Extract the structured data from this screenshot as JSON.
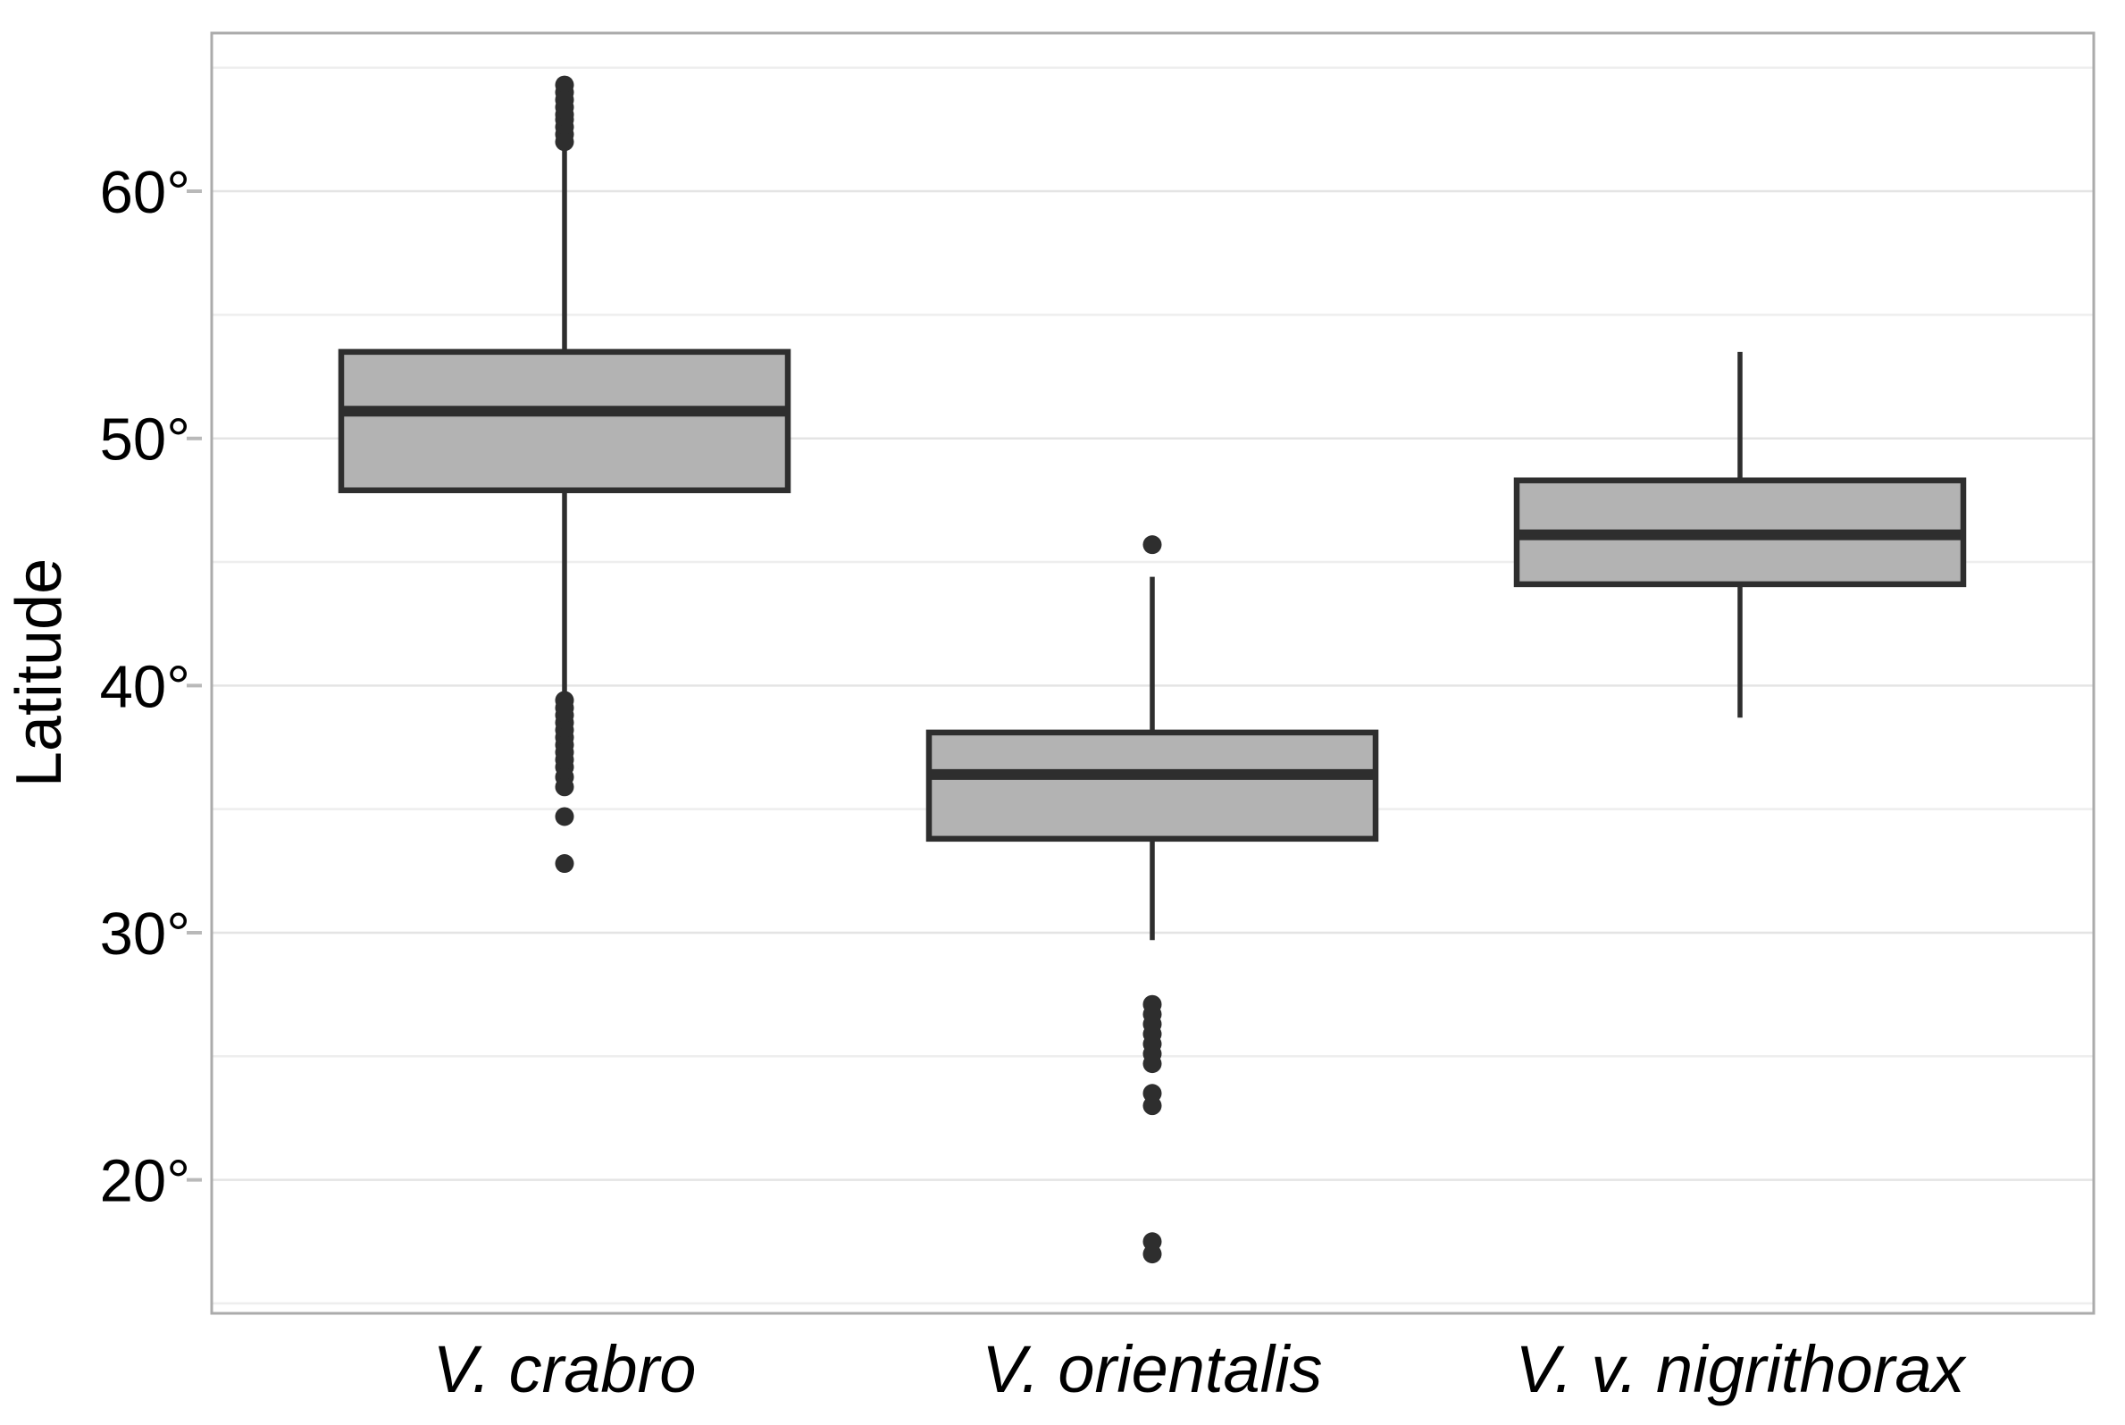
{
  "chart_data": {
    "type": "boxplot",
    "title": "",
    "xlabel": "",
    "ylabel": "Latitude",
    "categories": [
      "V. crabro",
      "V. orientalis",
      "V. v. nigrithorax"
    ],
    "ylim": [
      14.6,
      66.4
    ],
    "y_ticks": [
      {
        "value": 20,
        "label": "20°"
      },
      {
        "value": 30,
        "label": "30°"
      },
      {
        "value": 40,
        "label": "40°"
      },
      {
        "value": 50,
        "label": "50°"
      },
      {
        "value": 60,
        "label": "60°"
      }
    ],
    "y_minor_ticks": [
      15,
      25,
      35,
      45,
      55,
      65
    ],
    "grid": true,
    "legend": "none",
    "series": [
      {
        "name": "V. crabro",
        "q1": 47.9,
        "median": 51.1,
        "q3": 53.5,
        "whisker_low": 39.6,
        "whisker_high": 61.7,
        "outliers_high": [
          64.3,
          64.0,
          63.7,
          63.4,
          63.1,
          62.9,
          62.6,
          62.3,
          62.0
        ],
        "outliers_low": [
          39.4,
          39.1,
          38.8,
          38.5,
          38.2,
          37.9,
          37.6,
          37.3,
          37.0,
          36.7,
          36.3,
          35.9,
          34.7,
          32.8
        ]
      },
      {
        "name": "V. orientalis",
        "q1": 33.8,
        "median": 36.4,
        "q3": 38.1,
        "whisker_low": 29.7,
        "whisker_high": 44.4,
        "outliers_high": [
          45.7
        ],
        "outliers_low": [
          27.1,
          26.7,
          26.3,
          25.9,
          25.5,
          25.1,
          24.7,
          23.5,
          23.0,
          17.5,
          17.0
        ]
      },
      {
        "name": "V. v. nigrithorax",
        "q1": 44.1,
        "median": 46.1,
        "q3": 48.3,
        "whisker_low": 38.7,
        "whisker_high": 53.5,
        "outliers_high": [],
        "outliers_low": []
      }
    ]
  },
  "colors": {
    "background": "#ffffff",
    "panel_background": "#ffffff",
    "panel_border": "#ababab",
    "grid_major": "#e4e4e4",
    "grid_minor": "#eeeeee",
    "axis_tick": "#b9b9b9",
    "box_fill": "#b3b3b3",
    "box_line": "#2e2e2e",
    "text": "#000000"
  }
}
